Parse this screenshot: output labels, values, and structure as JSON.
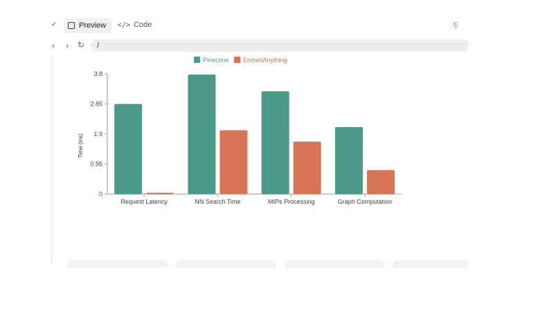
{
  "toolbar": {
    "preview_label": "Preview",
    "code_label": "Code",
    "code_icon_glyph": "</>"
  },
  "navbar": {
    "url": "/"
  },
  "colors": {
    "pinecone": "#4c9a8a",
    "embedanything": "#d77455"
  },
  "chart_data": {
    "type": "bar",
    "categories": [
      "Request Latency",
      "NN Search Time",
      "MIPs Processing",
      "Graph Computation"
    ],
    "series": [
      {
        "name": "Pinecone",
        "values": [
          2.85,
          3.78,
          3.25,
          2.12
        ]
      },
      {
        "name": "EmbedAnything",
        "values": [
          0.04,
          2.02,
          1.66,
          0.76
        ]
      }
    ],
    "ylabel": "Time (ms)",
    "ylim": [
      0,
      3.8
    ],
    "yticks": [
      "0",
      "0.95",
      "1.9",
      "2.85",
      "3.8"
    ],
    "legend": "top"
  }
}
